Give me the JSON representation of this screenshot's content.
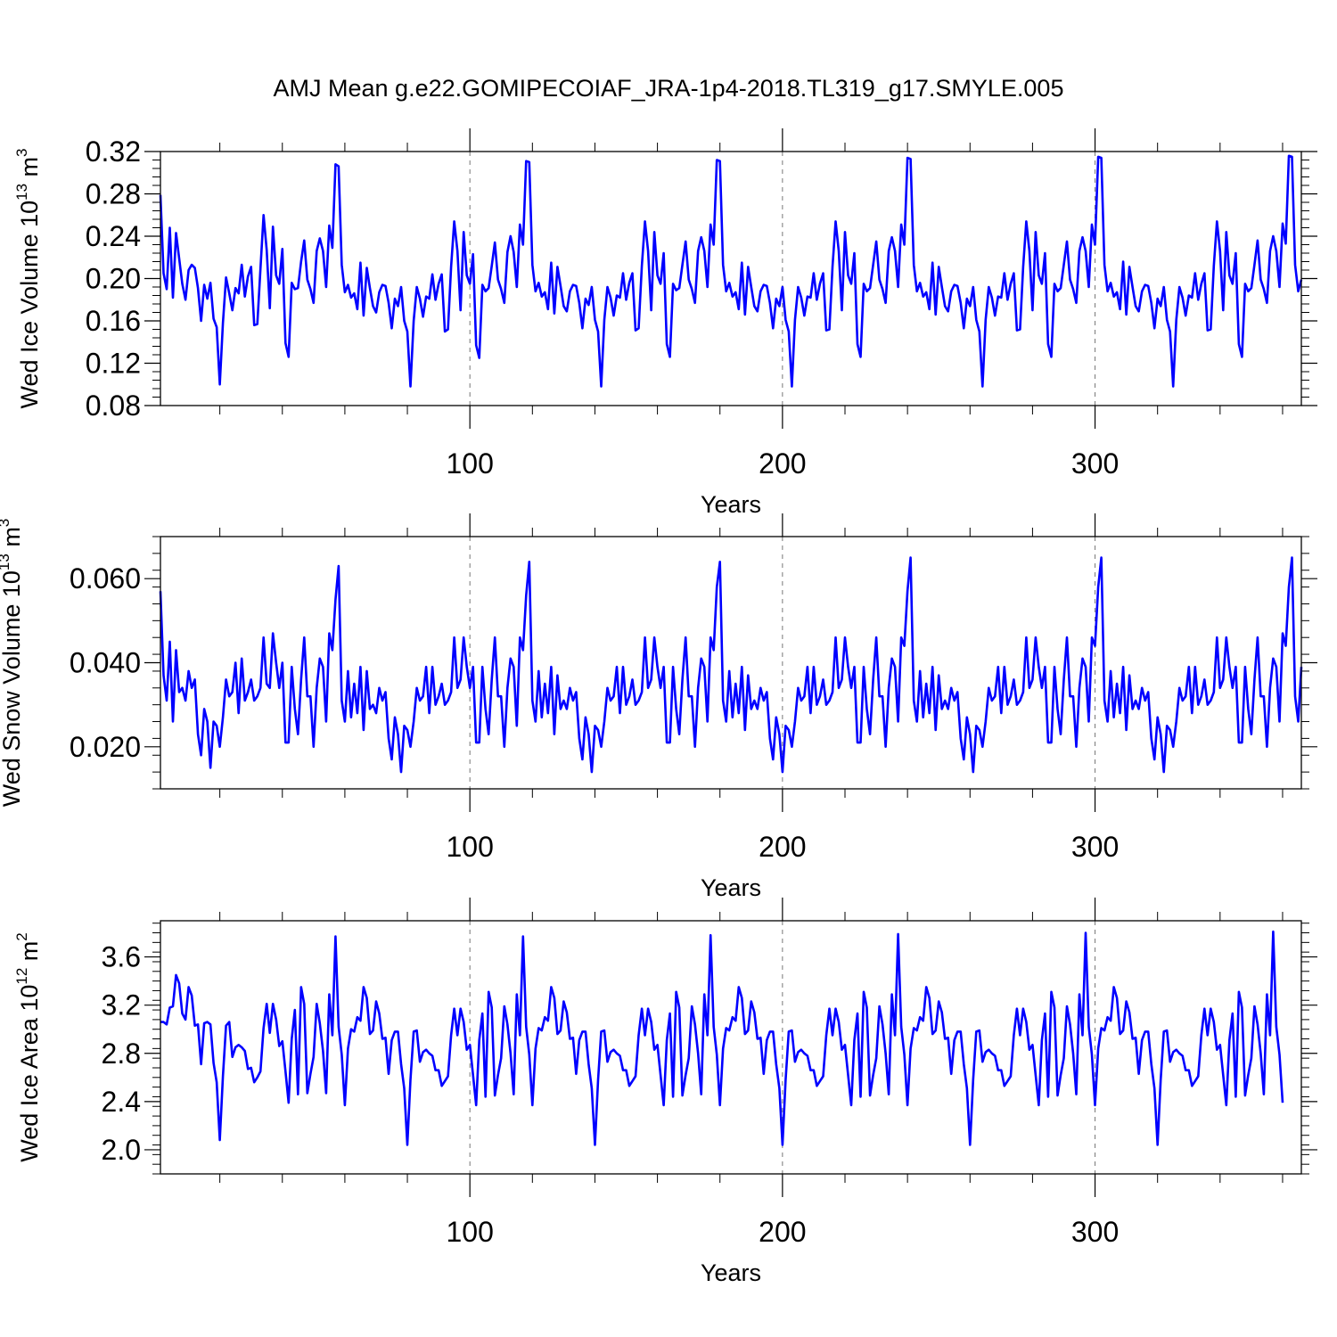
{
  "title": "AMJ Mean g.e22.GOMIPECOIAF_JRA-1p4-2018.TL319_g17.SMYLE.005",
  "colors": {
    "series": "#0000ff",
    "refline": "#777777"
  },
  "chart_data": [
    {
      "type": "line",
      "ylabel_main": "Wed Ice Volume 10",
      "ylabel_exp": "13",
      "ylabel_unit": " m",
      "ylabel_unit_exp": "3",
      "xlabel": "Years",
      "xlim": [
        1,
        366
      ],
      "ylim": [
        0.08,
        0.32
      ],
      "yticks": [
        0.08,
        0.12,
        0.16,
        0.2,
        0.24,
        0.28,
        0.32
      ],
      "ytick_labels": [
        "0.08",
        "0.12",
        "0.16",
        "0.20",
        "0.24",
        "0.28",
        "0.32"
      ],
      "xticks": [
        100,
        200,
        300
      ],
      "xtick_labels": [
        "100",
        "200",
        "300"
      ],
      "reflines_x": [
        100,
        200,
        300
      ],
      "values": [
        0.279,
        0.205,
        0.19,
        0.248,
        0.182,
        0.243,
        0.219,
        0.195,
        0.18,
        0.208,
        0.213,
        0.21,
        0.191,
        0.16,
        0.194,
        0.181,
        0.196,
        0.162,
        0.154,
        0.1,
        0.158,
        0.201,
        0.186,
        0.17,
        0.191,
        0.186,
        0.213,
        0.183,
        0.202,
        0.211,
        0.156,
        0.157,
        0.209,
        0.26,
        0.227,
        0.172,
        0.249,
        0.203,
        0.195,
        0.228,
        0.139,
        0.126,
        0.196,
        0.19,
        0.191,
        0.216,
        0.236,
        0.199,
        0.19,
        0.177,
        0.226,
        0.238,
        0.226,
        0.192,
        0.25,
        0.229,
        0.308,
        0.306,
        0.213,
        0.187,
        0.194,
        0.182,
        0.186,
        0.171,
        0.215,
        0.165,
        0.21,
        0.191,
        0.174,
        0.168,
        0.187,
        0.194,
        0.193,
        0.177,
        0.153,
        0.181,
        0.174,
        0.192,
        0.16,
        0.15,
        0.098,
        0.16,
        0.192,
        0.181,
        0.164,
        0.183,
        0.181,
        0.204,
        0.18,
        0.195,
        0.204,
        0.15,
        0.152,
        0.211,
        0.254,
        0.226,
        0.17,
        0.244,
        0.203,
        0.195,
        0.223,
        0.137,
        0.125,
        0.194,
        0.188,
        0.191,
        0.212,
        0.234,
        0.199,
        0.19,
        0.177,
        0.225,
        0.24,
        0.225,
        0.192,
        0.251,
        0.232,
        0.311,
        0.31,
        0.213,
        0.188,
        0.196,
        0.183,
        0.187,
        0.171,
        0.215,
        0.167,
        0.211,
        0.193,
        0.174,
        0.169,
        0.188,
        0.194,
        0.193,
        0.177,
        0.153,
        0.181,
        0.175,
        0.192,
        0.161,
        0.15,
        0.098,
        0.161,
        0.192,
        0.182,
        0.165,
        0.184,
        0.182,
        0.205,
        0.18,
        0.196,
        0.205,
        0.151,
        0.153,
        0.212,
        0.254,
        0.226,
        0.17,
        0.244,
        0.203,
        0.195,
        0.224,
        0.138,
        0.126,
        0.195,
        0.189,
        0.191,
        0.213,
        0.235,
        0.199,
        0.19,
        0.177,
        0.226,
        0.239,
        0.226,
        0.192,
        0.251,
        0.232,
        0.312,
        0.311,
        0.213,
        0.188,
        0.196,
        0.183,
        0.187,
        0.171,
        0.215,
        0.166,
        0.211,
        0.192,
        0.174,
        0.169,
        0.188,
        0.194,
        0.193,
        0.177,
        0.153,
        0.181,
        0.174,
        0.192,
        0.161,
        0.15,
        0.098,
        0.161,
        0.192,
        0.182,
        0.165,
        0.183,
        0.182,
        0.205,
        0.18,
        0.195,
        0.205,
        0.151,
        0.152,
        0.211,
        0.254,
        0.226,
        0.17,
        0.244,
        0.203,
        0.195,
        0.224,
        0.138,
        0.126,
        0.195,
        0.188,
        0.191,
        0.213,
        0.235,
        0.199,
        0.19,
        0.177,
        0.226,
        0.239,
        0.226,
        0.192,
        0.251,
        0.232,
        0.314,
        0.313,
        0.213,
        0.188,
        0.196,
        0.183,
        0.187,
        0.171,
        0.215,
        0.166,
        0.211,
        0.192,
        0.174,
        0.169,
        0.188,
        0.194,
        0.193,
        0.177,
        0.153,
        0.181,
        0.174,
        0.192,
        0.161,
        0.15,
        0.098,
        0.161,
        0.192,
        0.182,
        0.165,
        0.183,
        0.182,
        0.205,
        0.18,
        0.195,
        0.205,
        0.151,
        0.152,
        0.211,
        0.254,
        0.226,
        0.17,
        0.244,
        0.203,
        0.195,
        0.224,
        0.138,
        0.126,
        0.195,
        0.188,
        0.191,
        0.213,
        0.235,
        0.199,
        0.19,
        0.177,
        0.226,
        0.239,
        0.226,
        0.192,
        0.251,
        0.232,
        0.315,
        0.314,
        0.213,
        0.188,
        0.196,
        0.183,
        0.187,
        0.171,
        0.216,
        0.166,
        0.211,
        0.192,
        0.174,
        0.169,
        0.188,
        0.194,
        0.193,
        0.177,
        0.153,
        0.181,
        0.174,
        0.192,
        0.161,
        0.15,
        0.098,
        0.161,
        0.192,
        0.182,
        0.165,
        0.184,
        0.182,
        0.205,
        0.18,
        0.195,
        0.205,
        0.151,
        0.152,
        0.212,
        0.254,
        0.226,
        0.17,
        0.244,
        0.203,
        0.195,
        0.224,
        0.138,
        0.126,
        0.195,
        0.188,
        0.191,
        0.213,
        0.236,
        0.199,
        0.19,
        0.177,
        0.226,
        0.24,
        0.226,
        0.192,
        0.252,
        0.233,
        0.316,
        0.315,
        0.213,
        0.188,
        0.199
      ]
    },
    {
      "type": "line",
      "ylabel_main": "Wed Snow Volume 10",
      "ylabel_exp": "13",
      "ylabel_unit": " m",
      "ylabel_unit_exp": "3",
      "xlabel": "Years",
      "xlim": [
        1,
        366
      ],
      "ylim": [
        0.01,
        0.07
      ],
      "yticks": [
        0.02,
        0.04,
        0.06
      ],
      "ytick_labels": [
        "0.020",
        "0.040",
        "0.060"
      ],
      "xticks": [
        100,
        200,
        300
      ],
      "xtick_labels": [
        "100",
        "200",
        "300"
      ],
      "reflines_x": [
        100,
        200,
        300
      ],
      "values": [
        0.057,
        0.037,
        0.031,
        0.045,
        0.026,
        0.043,
        0.033,
        0.034,
        0.031,
        0.038,
        0.034,
        0.036,
        0.023,
        0.018,
        0.029,
        0.026,
        0.015,
        0.026,
        0.025,
        0.02,
        0.027,
        0.036,
        0.032,
        0.033,
        0.04,
        0.028,
        0.041,
        0.031,
        0.033,
        0.036,
        0.031,
        0.032,
        0.034,
        0.046,
        0.035,
        0.034,
        0.047,
        0.04,
        0.034,
        0.04,
        0.021,
        0.021,
        0.039,
        0.029,
        0.023,
        0.036,
        0.046,
        0.032,
        0.032,
        0.02,
        0.034,
        0.041,
        0.039,
        0.026,
        0.047,
        0.043,
        0.055,
        0.063,
        0.031,
        0.026,
        0.038,
        0.027,
        0.035,
        0.028,
        0.039,
        0.024,
        0.038,
        0.029,
        0.03,
        0.028,
        0.034,
        0.031,
        0.033,
        0.022,
        0.017,
        0.027,
        0.023,
        0.014,
        0.025,
        0.024,
        0.02,
        0.026,
        0.034,
        0.031,
        0.032,
        0.039,
        0.028,
        0.039,
        0.03,
        0.032,
        0.035,
        0.03,
        0.031,
        0.033,
        0.046,
        0.034,
        0.036,
        0.046,
        0.039,
        0.034,
        0.039,
        0.021,
        0.021,
        0.039,
        0.029,
        0.023,
        0.036,
        0.046,
        0.032,
        0.032,
        0.02,
        0.034,
        0.041,
        0.039,
        0.025,
        0.046,
        0.043,
        0.056,
        0.064,
        0.031,
        0.026,
        0.038,
        0.027,
        0.035,
        0.028,
        0.039,
        0.023,
        0.037,
        0.029,
        0.031,
        0.029,
        0.034,
        0.031,
        0.033,
        0.022,
        0.017,
        0.027,
        0.023,
        0.014,
        0.025,
        0.024,
        0.02,
        0.026,
        0.034,
        0.031,
        0.032,
        0.039,
        0.028,
        0.039,
        0.03,
        0.032,
        0.036,
        0.03,
        0.031,
        0.033,
        0.046,
        0.034,
        0.036,
        0.046,
        0.039,
        0.034,
        0.039,
        0.021,
        0.021,
        0.039,
        0.029,
        0.023,
        0.036,
        0.046,
        0.032,
        0.032,
        0.02,
        0.034,
        0.041,
        0.039,
        0.026,
        0.046,
        0.043,
        0.058,
        0.064,
        0.031,
        0.026,
        0.038,
        0.027,
        0.035,
        0.028,
        0.039,
        0.024,
        0.037,
        0.029,
        0.031,
        0.029,
        0.034,
        0.031,
        0.033,
        0.022,
        0.017,
        0.027,
        0.023,
        0.014,
        0.025,
        0.024,
        0.02,
        0.026,
        0.034,
        0.031,
        0.032,
        0.039,
        0.028,
        0.039,
        0.03,
        0.032,
        0.036,
        0.03,
        0.031,
        0.033,
        0.046,
        0.034,
        0.036,
        0.046,
        0.039,
        0.034,
        0.039,
        0.021,
        0.021,
        0.039,
        0.029,
        0.023,
        0.036,
        0.046,
        0.032,
        0.032,
        0.02,
        0.034,
        0.041,
        0.039,
        0.026,
        0.046,
        0.044,
        0.057,
        0.065,
        0.031,
        0.026,
        0.038,
        0.027,
        0.035,
        0.028,
        0.039,
        0.024,
        0.037,
        0.029,
        0.031,
        0.029,
        0.034,
        0.031,
        0.033,
        0.022,
        0.017,
        0.027,
        0.023,
        0.014,
        0.025,
        0.024,
        0.02,
        0.026,
        0.034,
        0.031,
        0.032,
        0.039,
        0.028,
        0.039,
        0.03,
        0.032,
        0.036,
        0.03,
        0.031,
        0.033,
        0.046,
        0.034,
        0.036,
        0.046,
        0.039,
        0.034,
        0.039,
        0.021,
        0.021,
        0.039,
        0.029,
        0.023,
        0.036,
        0.046,
        0.032,
        0.032,
        0.02,
        0.034,
        0.041,
        0.039,
        0.026,
        0.046,
        0.044,
        0.058,
        0.065,
        0.031,
        0.026,
        0.038,
        0.027,
        0.035,
        0.028,
        0.039,
        0.024,
        0.037,
        0.029,
        0.031,
        0.029,
        0.034,
        0.031,
        0.033,
        0.022,
        0.017,
        0.027,
        0.023,
        0.014,
        0.025,
        0.024,
        0.02,
        0.026,
        0.034,
        0.031,
        0.032,
        0.039,
        0.028,
        0.039,
        0.03,
        0.032,
        0.036,
        0.03,
        0.031,
        0.033,
        0.046,
        0.034,
        0.036,
        0.046,
        0.039,
        0.034,
        0.039,
        0.021,
        0.021,
        0.039,
        0.029,
        0.023,
        0.036,
        0.046,
        0.032,
        0.032,
        0.02,
        0.034,
        0.041,
        0.039,
        0.026,
        0.047,
        0.044,
        0.058,
        0.065,
        0.032,
        0.026,
        0.039
      ]
    },
    {
      "type": "line",
      "ylabel_main": "Wed Ice Area 10",
      "ylabel_exp": "12",
      "ylabel_unit": " m",
      "ylabel_unit_exp": "2",
      "xlabel": "Years",
      "xlim": [
        1,
        366
      ],
      "ylim": [
        1.8,
        3.9
      ],
      "yticks": [
        2.0,
        2.4,
        2.8,
        3.2,
        3.6
      ],
      "ytick_labels": [
        "2.0",
        "2.4",
        "2.8",
        "3.2",
        "3.6"
      ],
      "xticks": [
        100,
        200,
        300
      ],
      "xtick_labels": [
        "100",
        "200",
        "300"
      ],
      "reflines_x": [
        100,
        200,
        300
      ],
      "values": [
        3.06,
        3.06,
        3.04,
        3.18,
        3.19,
        3.45,
        3.38,
        3.13,
        3.08,
        3.35,
        3.28,
        3.03,
        3.04,
        2.71,
        3.05,
        3.06,
        3.04,
        2.72,
        2.56,
        2.08,
        2.61,
        3.03,
        3.06,
        2.77,
        2.85,
        2.87,
        2.85,
        2.82,
        2.67,
        2.68,
        2.56,
        2.6,
        2.65,
        3.01,
        3.21,
        2.97,
        3.21,
        3.08,
        2.86,
        2.9,
        2.65,
        2.39,
        2.92,
        3.16,
        2.46,
        3.35,
        3.21,
        2.47,
        2.63,
        2.77,
        3.21,
        3.05,
        2.82,
        2.47,
        3.29,
        2.95,
        3.77,
        3.02,
        2.79,
        2.37,
        2.84,
        3.0,
        2.98,
        3.1,
        3.07,
        3.35,
        3.26,
        2.96,
        2.99,
        3.23,
        3.13,
        2.92,
        2.93,
        2.63,
        2.91,
        2.98,
        2.98,
        2.71,
        2.51,
        2.04,
        2.58,
        2.98,
        2.99,
        2.73,
        2.81,
        2.83,
        2.8,
        2.78,
        2.66,
        2.66,
        2.53,
        2.57,
        2.61,
        2.95,
        3.17,
        2.95,
        3.17,
        3.06,
        2.83,
        2.87,
        2.62,
        2.37,
        2.91,
        3.13,
        2.44,
        3.31,
        3.18,
        2.45,
        2.62,
        2.76,
        3.19,
        3.04,
        2.8,
        2.46,
        3.29,
        2.95,
        3.77,
        3.02,
        2.79,
        2.37,
        2.84,
        3.01,
        2.99,
        3.1,
        3.07,
        3.35,
        3.26,
        2.96,
        2.99,
        3.23,
        3.14,
        2.92,
        2.93,
        2.63,
        2.91,
        2.98,
        2.98,
        2.71,
        2.51,
        2.04,
        2.58,
        2.98,
        2.99,
        2.73,
        2.81,
        2.83,
        2.8,
        2.78,
        2.66,
        2.66,
        2.53,
        2.57,
        2.61,
        2.95,
        3.17,
        2.95,
        3.17,
        3.06,
        2.83,
        2.87,
        2.62,
        2.37,
        2.91,
        3.13,
        2.44,
        3.31,
        3.18,
        2.45,
        2.62,
        2.76,
        3.19,
        3.04,
        2.8,
        2.46,
        3.29,
        2.95,
        3.78,
        3.02,
        2.79,
        2.37,
        2.84,
        3.01,
        2.99,
        3.1,
        3.07,
        3.35,
        3.26,
        2.96,
        2.99,
        3.23,
        3.14,
        2.92,
        2.93,
        2.63,
        2.91,
        2.98,
        2.98,
        2.71,
        2.51,
        2.04,
        2.58,
        2.98,
        2.99,
        2.73,
        2.81,
        2.83,
        2.8,
        2.78,
        2.66,
        2.66,
        2.53,
        2.57,
        2.61,
        2.95,
        3.17,
        2.95,
        3.17,
        3.06,
        2.83,
        2.87,
        2.62,
        2.37,
        2.91,
        3.13,
        2.44,
        3.31,
        3.18,
        2.45,
        2.62,
        2.76,
        3.19,
        3.04,
        2.8,
        2.46,
        3.29,
        2.95,
        3.79,
        3.02,
        2.79,
        2.37,
        2.84,
        3.01,
        2.99,
        3.1,
        3.07,
        3.35,
        3.26,
        2.96,
        2.99,
        3.23,
        3.14,
        2.92,
        2.93,
        2.63,
        2.91,
        2.98,
        2.98,
        2.71,
        2.51,
        2.04,
        2.58,
        2.98,
        2.99,
        2.73,
        2.81,
        2.83,
        2.8,
        2.78,
        2.66,
        2.66,
        2.53,
        2.57,
        2.61,
        2.95,
        3.17,
        2.95,
        3.17,
        3.06,
        2.83,
        2.87,
        2.62,
        2.37,
        2.91,
        3.13,
        2.44,
        3.31,
        3.18,
        2.45,
        2.62,
        2.76,
        3.19,
        3.04,
        2.8,
        2.46,
        3.29,
        2.95,
        3.8,
        3.02,
        2.79,
        2.37,
        2.84,
        3.01,
        2.99,
        3.1,
        3.07,
        3.35,
        3.26,
        2.96,
        2.99,
        3.23,
        3.14,
        2.92,
        2.93,
        2.63,
        2.91,
        2.98,
        2.98,
        2.71,
        2.51,
        2.04,
        2.58,
        2.98,
        2.99,
        2.73,
        2.81,
        2.83,
        2.8,
        2.78,
        2.66,
        2.66,
        2.53,
        2.57,
        2.61,
        2.95,
        3.17,
        2.95,
        3.17,
        3.06,
        2.83,
        2.87,
        2.62,
        2.37,
        2.91,
        3.13,
        2.44,
        3.31,
        3.18,
        2.45,
        2.62,
        2.76,
        3.19,
        3.04,
        2.8,
        2.46,
        3.29,
        2.95,
        3.81,
        3.02,
        2.79,
        2.39
      ]
    }
  ]
}
